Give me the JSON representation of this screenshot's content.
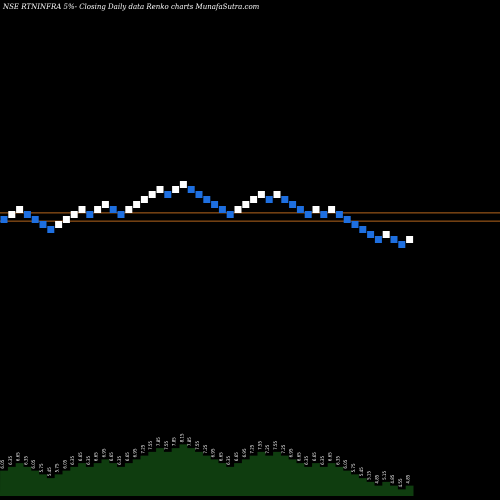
{
  "header": {
    "title": "NSE RTNINFRA 5%-  Closing Daily data  Renko  charts MunafaSutra.com"
  },
  "chart_data": {
    "type": "renko",
    "brick_pct": 5,
    "colors": {
      "background": "#000000",
      "up_brick": "#ffffff",
      "down_brick": "#1e6fe0",
      "ref_line": "#b5651d",
      "volume_fill": "#0f3d0f",
      "label": "#ffffff"
    },
    "reference_lines": [
      {
        "name": "upper",
        "value": 6.45
      },
      {
        "name": "lower",
        "value": 5.95
      }
    ],
    "bricks": [
      {
        "dir": "down",
        "value": 6.05
      },
      {
        "dir": "up",
        "value": 6.35
      },
      {
        "dir": "up",
        "value": 6.65
      },
      {
        "dir": "down",
        "value": 6.35
      },
      {
        "dir": "down",
        "value": 6.05
      },
      {
        "dir": "down",
        "value": 5.75
      },
      {
        "dir": "down",
        "value": 5.45
      },
      {
        "dir": "up",
        "value": 5.75
      },
      {
        "dir": "up",
        "value": 6.05
      },
      {
        "dir": "up",
        "value": 6.35
      },
      {
        "dir": "up",
        "value": 6.65
      },
      {
        "dir": "down",
        "value": 6.35
      },
      {
        "dir": "up",
        "value": 6.65
      },
      {
        "dir": "up",
        "value": 6.95
      },
      {
        "dir": "down",
        "value": 6.65
      },
      {
        "dir": "down",
        "value": 6.35
      },
      {
        "dir": "up",
        "value": 6.65
      },
      {
        "dir": "up",
        "value": 6.95
      },
      {
        "dir": "up",
        "value": 7.25
      },
      {
        "dir": "up",
        "value": 7.55
      },
      {
        "dir": "up",
        "value": 7.85
      },
      {
        "dir": "down",
        "value": 7.55
      },
      {
        "dir": "up",
        "value": 7.85
      },
      {
        "dir": "up",
        "value": 8.15
      },
      {
        "dir": "down",
        "value": 7.85
      },
      {
        "dir": "down",
        "value": 7.55
      },
      {
        "dir": "down",
        "value": 7.25
      },
      {
        "dir": "down",
        "value": 6.95
      },
      {
        "dir": "down",
        "value": 6.65
      },
      {
        "dir": "down",
        "value": 6.35
      },
      {
        "dir": "up",
        "value": 6.65
      },
      {
        "dir": "up",
        "value": 6.95
      },
      {
        "dir": "up",
        "value": 7.25
      },
      {
        "dir": "up",
        "value": 7.55
      },
      {
        "dir": "down",
        "value": 7.25
      },
      {
        "dir": "up",
        "value": 7.55
      },
      {
        "dir": "down",
        "value": 7.25
      },
      {
        "dir": "down",
        "value": 6.95
      },
      {
        "dir": "down",
        "value": 6.65
      },
      {
        "dir": "down",
        "value": 6.35
      },
      {
        "dir": "up",
        "value": 6.65
      },
      {
        "dir": "down",
        "value": 6.35
      },
      {
        "dir": "up",
        "value": 6.65
      },
      {
        "dir": "down",
        "value": 6.35
      },
      {
        "dir": "down",
        "value": 6.05
      },
      {
        "dir": "down",
        "value": 5.75
      },
      {
        "dir": "down",
        "value": 5.45
      },
      {
        "dir": "down",
        "value": 5.15
      },
      {
        "dir": "down",
        "value": 4.85
      },
      {
        "dir": "up",
        "value": 5.15
      },
      {
        "dir": "down",
        "value": 4.85
      },
      {
        "dir": "down",
        "value": 4.55
      },
      {
        "dir": "up",
        "value": 4.85
      }
    ],
    "bottom_labels": [
      "6.05",
      "6.35",
      "6.65",
      "6.35",
      "6.05",
      "5.75",
      "5.45",
      "5.75",
      "6.05",
      "6.35",
      "6.65",
      "6.35",
      "6.65",
      "6.95",
      "6.65",
      "6.35",
      "6.65",
      "6.95",
      "7.25",
      "7.55",
      "7.85",
      "7.55",
      "7.85",
      "8.15",
      "7.85",
      "7.55",
      "7.25",
      "6.95",
      "6.65",
      "6.35",
      "6.65",
      "6.95",
      "7.25",
      "7.55",
      "7.25",
      "7.55",
      "7.25",
      "6.95",
      "6.65",
      "6.35",
      "6.65",
      "6.35",
      "6.65",
      "6.35",
      "6.05",
      "5.75",
      "5.45",
      "5.15",
      "4.85",
      "5.15",
      "4.85",
      "4.55",
      "4.85"
    ]
  }
}
